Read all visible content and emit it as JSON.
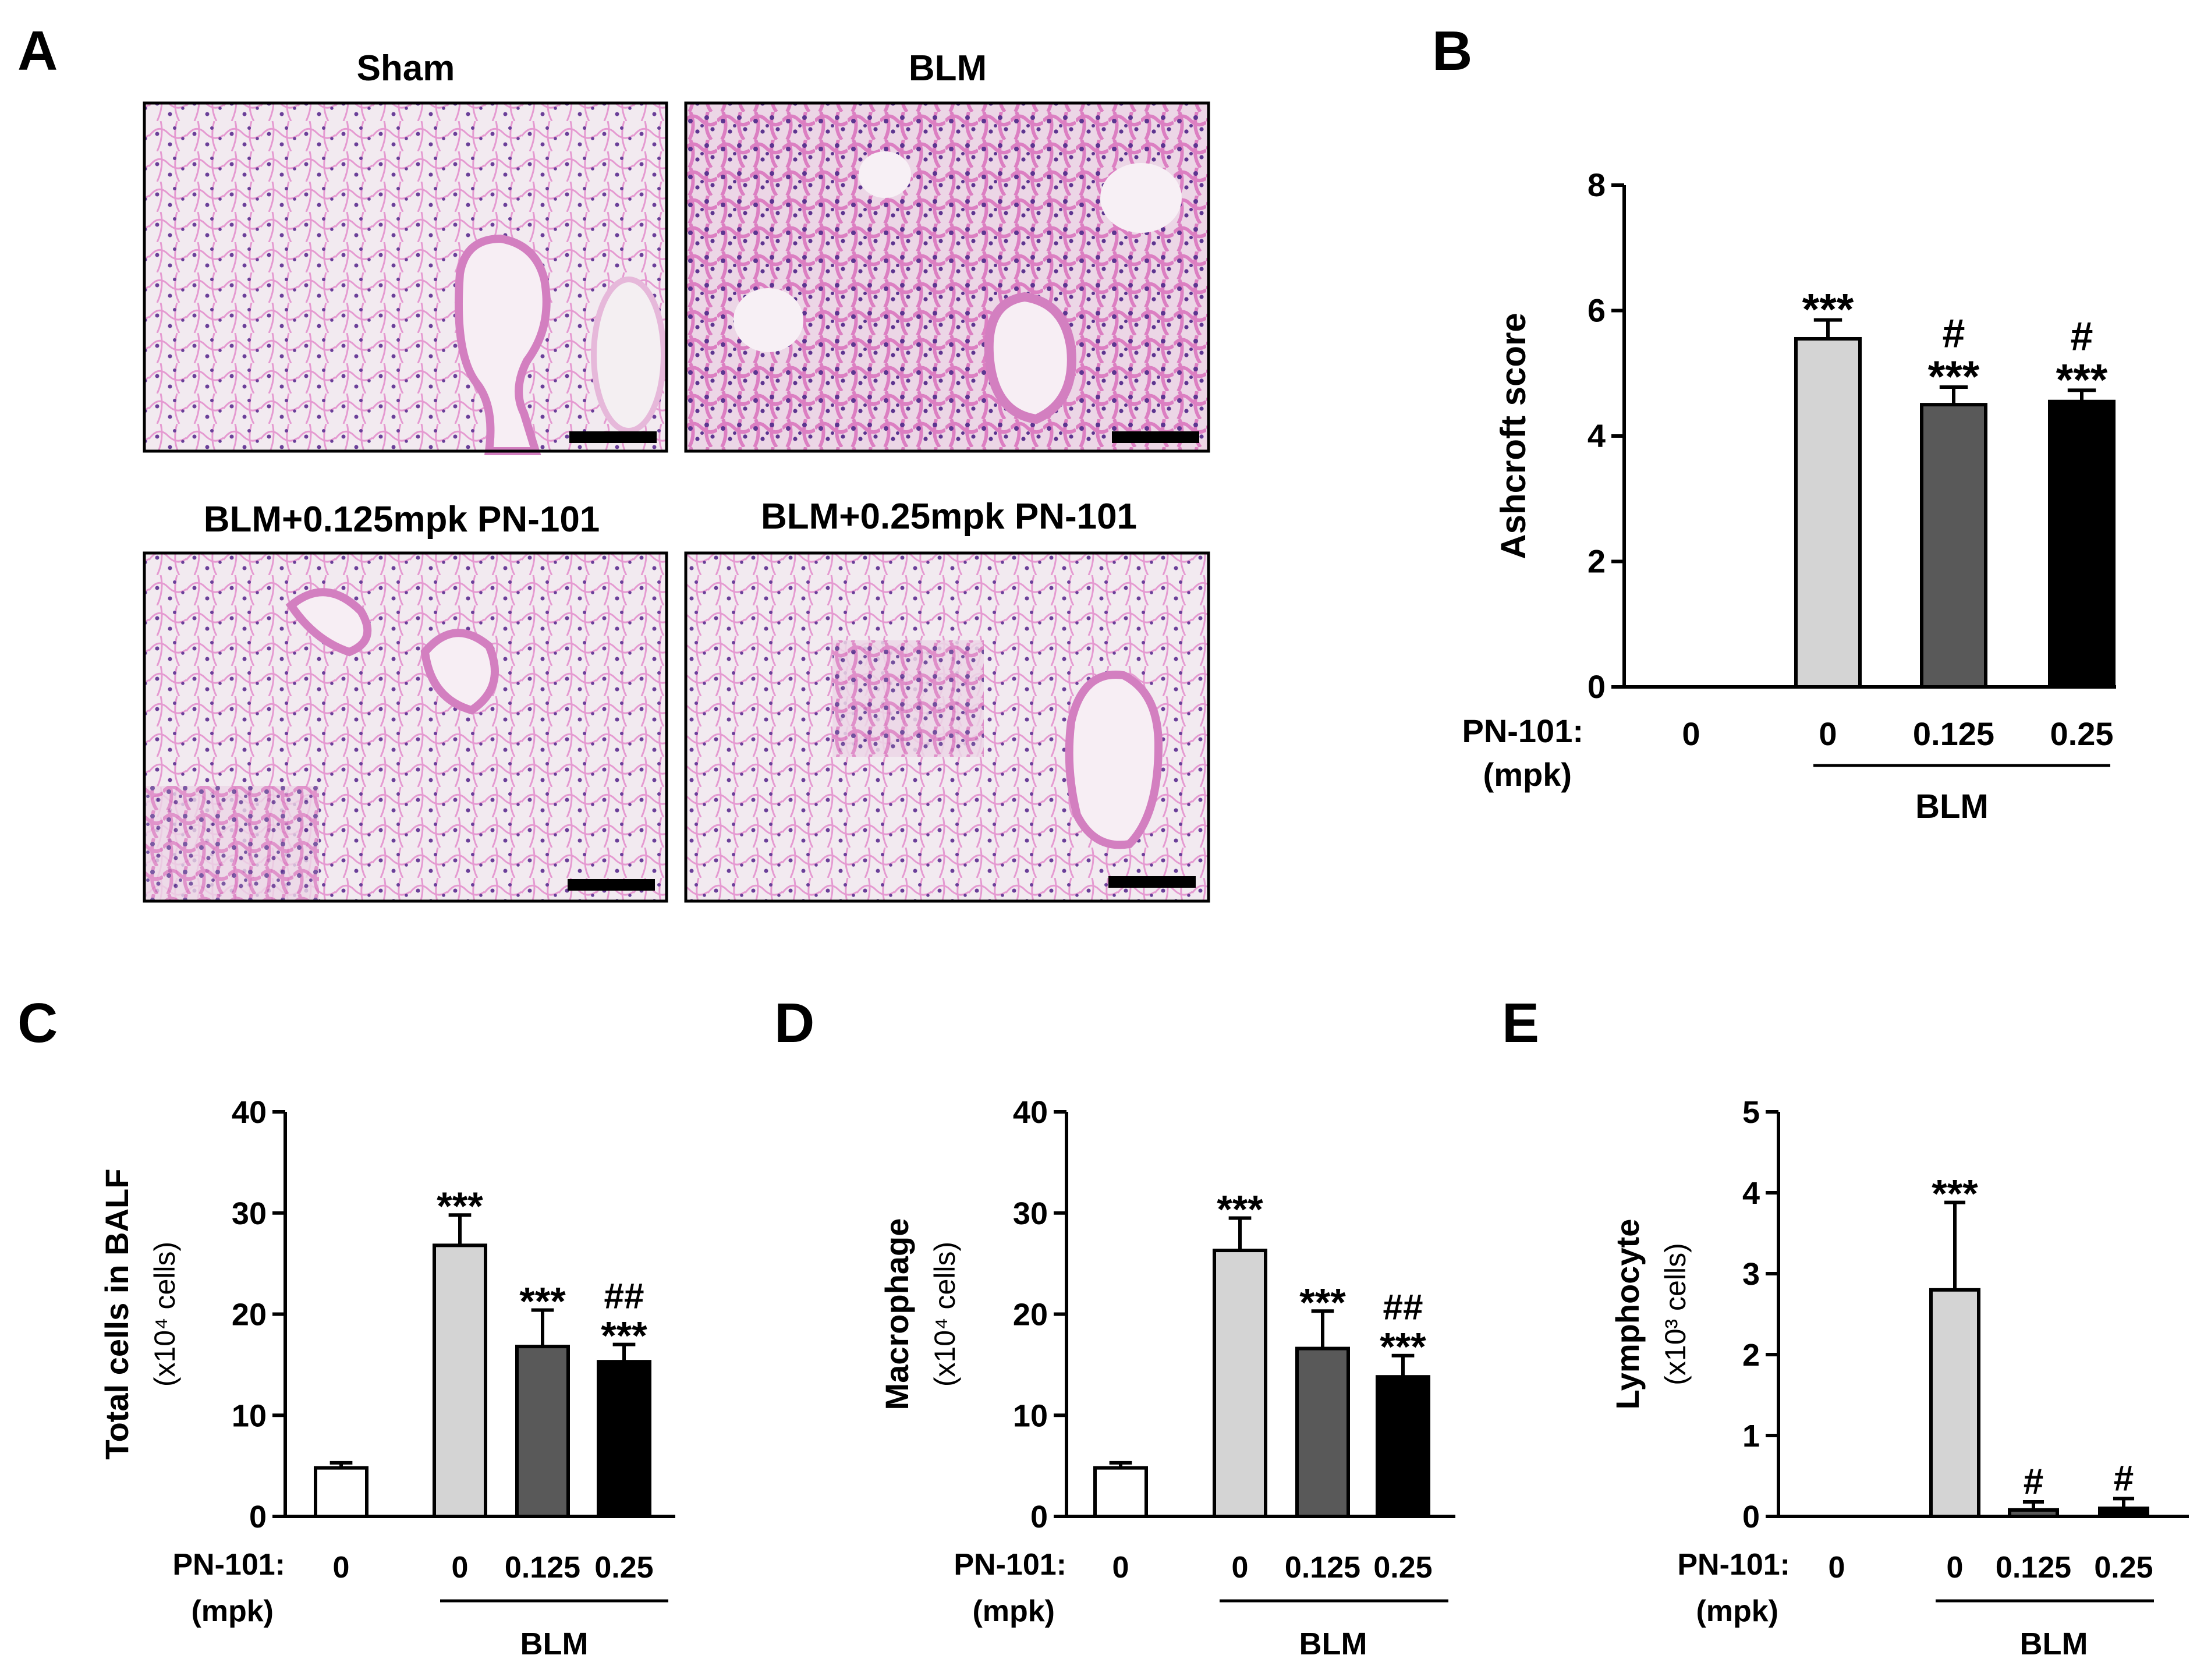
{
  "panel_labels": [
    "A",
    "B",
    "C",
    "D",
    "E"
  ],
  "micrographs": [
    {
      "title": "Sham"
    },
    {
      "title": "BLM"
    },
    {
      "title": "BLM+0.125mpk PN-101"
    },
    {
      "title": "BLM+0.25mpk PN-101"
    }
  ],
  "colors": {
    "bar_fills": [
      "#ffffff",
      "#d4d4d4",
      "#595959",
      "#000000"
    ],
    "tissue_pink": "#e59ad1",
    "tissue_nuclei": "#6a3f99",
    "background_pale": "#f2eaf0"
  },
  "chart_data": [
    {
      "type": "bar",
      "panel": "B",
      "ylabel": "Ashcroft score",
      "ylabel_sub": "",
      "ylim": [
        0,
        8
      ],
      "yticks": [
        0,
        2,
        4,
        6,
        8
      ],
      "categories": [
        "0",
        "0",
        "0.125",
        "0.25"
      ],
      "values": [
        0,
        5.55,
        4.5,
        4.55
      ],
      "errors": [
        0,
        0.3,
        0.28,
        0.18
      ],
      "annotations": [
        [],
        [
          "***"
        ],
        [
          "#",
          "***"
        ],
        [
          "#",
          "***"
        ]
      ],
      "x_axis_label": [
        "PN-101:",
        "(mpk)"
      ],
      "group_label": "BLM"
    },
    {
      "type": "bar",
      "panel": "C",
      "ylabel": "Total cells in BALF",
      "ylabel_sub": "(x10⁴ cells)",
      "ylim": [
        0,
        40
      ],
      "yticks": [
        0,
        10,
        20,
        30,
        40
      ],
      "categories": [
        "0",
        "0",
        "0.125",
        "0.25"
      ],
      "values": [
        4.8,
        26.8,
        16.8,
        15.3
      ],
      "errors": [
        0.5,
        3.0,
        3.6,
        1.7
      ],
      "annotations": [
        [],
        [
          "***"
        ],
        [
          "***"
        ],
        [
          "##",
          "***"
        ]
      ],
      "x_axis_label": [
        "PN-101:",
        "(mpk)"
      ],
      "group_label": "BLM"
    },
    {
      "type": "bar",
      "panel": "D",
      "ylabel": "Macrophage",
      "ylabel_sub": "(x10⁴ cells)",
      "ylim": [
        0,
        40
      ],
      "yticks": [
        0,
        10,
        20,
        30,
        40
      ],
      "categories": [
        "0",
        "0",
        "0.125",
        "0.25"
      ],
      "values": [
        4.8,
        26.3,
        16.6,
        13.8
      ],
      "errors": [
        0.5,
        3.2,
        3.7,
        2.1
      ],
      "annotations": [
        [],
        [
          "***"
        ],
        [
          "***"
        ],
        [
          "##",
          "***"
        ]
      ],
      "x_axis_label": [
        "PN-101:",
        "(mpk)"
      ],
      "group_label": "BLM"
    },
    {
      "type": "bar",
      "panel": "E",
      "ylabel": "Lymphocyte",
      "ylabel_sub": "(x10³ cells)",
      "ylim": [
        0,
        5
      ],
      "yticks": [
        0,
        1,
        2,
        3,
        4,
        5
      ],
      "categories": [
        "0",
        "0",
        "0.125",
        "0.25"
      ],
      "values": [
        0,
        2.8,
        0.08,
        0.1
      ],
      "errors": [
        0,
        1.08,
        0.1,
        0.12
      ],
      "annotations": [
        [],
        [
          "***"
        ],
        [
          "#"
        ],
        [
          "#"
        ]
      ],
      "x_axis_label": [
        "PN-101:",
        "(mpk)"
      ],
      "group_label": "BLM"
    }
  ]
}
